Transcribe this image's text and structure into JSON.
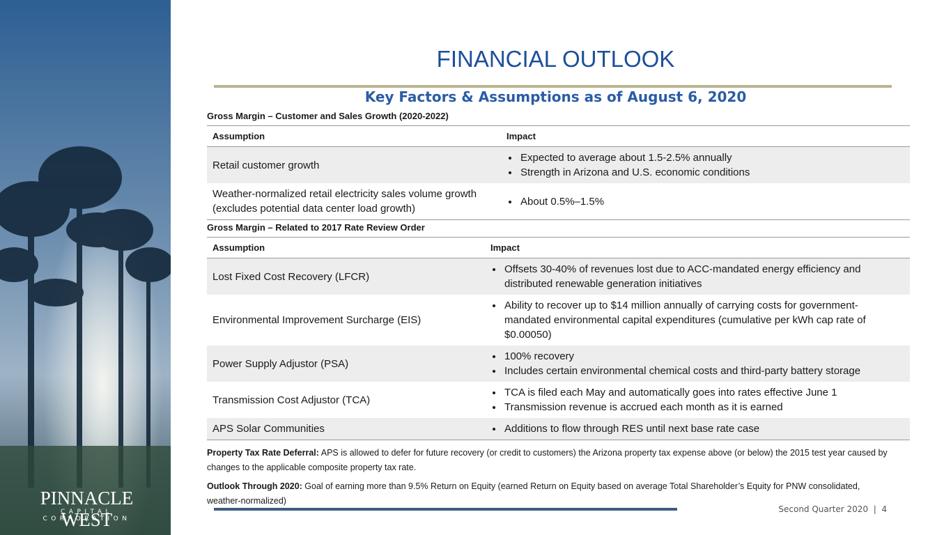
{
  "title": "FINANCIAL OUTLOOK",
  "subtitle": "Key Factors & Assumptions as of August 6, 2020",
  "logo": {
    "name": "PINNACLE WEST",
    "tagline": "CAPITAL CORPORATION"
  },
  "sections": [
    {
      "heading": "Gross Margin – Customer and Sales Growth (2020-2022)",
      "columns": [
        "Assumption",
        "Impact"
      ],
      "rows": [
        {
          "assumption": "Retail customer growth",
          "impact": [
            "Expected to average about 1.5-2.5% annually",
            "Strength in Arizona and U.S. economic conditions"
          ]
        },
        {
          "assumption": "Weather-normalized retail electricity sales volume growth (excludes potential data center load growth)",
          "impact": [
            "About 0.5%–1.5%"
          ]
        }
      ]
    },
    {
      "heading": "Gross Margin – Related to 2017 Rate Review Order",
      "columns": [
        "Assumption",
        "Impact"
      ],
      "rows": [
        {
          "assumption": "Lost Fixed Cost Recovery (LFCR)",
          "impact": [
            "Offsets 30-40% of revenues lost due to ACC-mandated energy efficiency and distributed renewable generation initiatives"
          ]
        },
        {
          "assumption": "Environmental Improvement Surcharge (EIS)",
          "impact": [
            "Ability to recover up to $14 million annually of carrying costs for government-mandated environmental capital expenditures (cumulative per kWh cap rate of $0.00050)"
          ]
        },
        {
          "assumption": "Power Supply Adjustor (PSA)",
          "impact": [
            "100% recovery",
            "Includes certain environmental chemical costs and third-party battery storage"
          ]
        },
        {
          "assumption": "Transmission Cost Adjustor (TCA)",
          "impact": [
            "TCA is filed each May and automatically goes into rates effective June 1",
            "Transmission revenue is accrued each month as it is earned"
          ]
        },
        {
          "assumption": "APS Solar Communities",
          "impact": [
            "Additions to flow through RES until next base rate case"
          ]
        }
      ]
    }
  ],
  "notes": [
    {
      "label": "Property Tax Rate Deferral:",
      "text": "APS is allowed to defer for future recovery (or credit to customers) the Arizona property tax expense above (or below) the 2015 test year caused by changes to the applicable composite property tax rate."
    },
    {
      "label": "Outlook Through 2020:",
      "text": "Goal of earning more than 9.5% Return on Equity (earned Return on Equity based on average Total Shareholder’s Equity for PNW consolidated, weather-normalized)"
    }
  ],
  "footer": "Second Quarter 2020  |  4"
}
